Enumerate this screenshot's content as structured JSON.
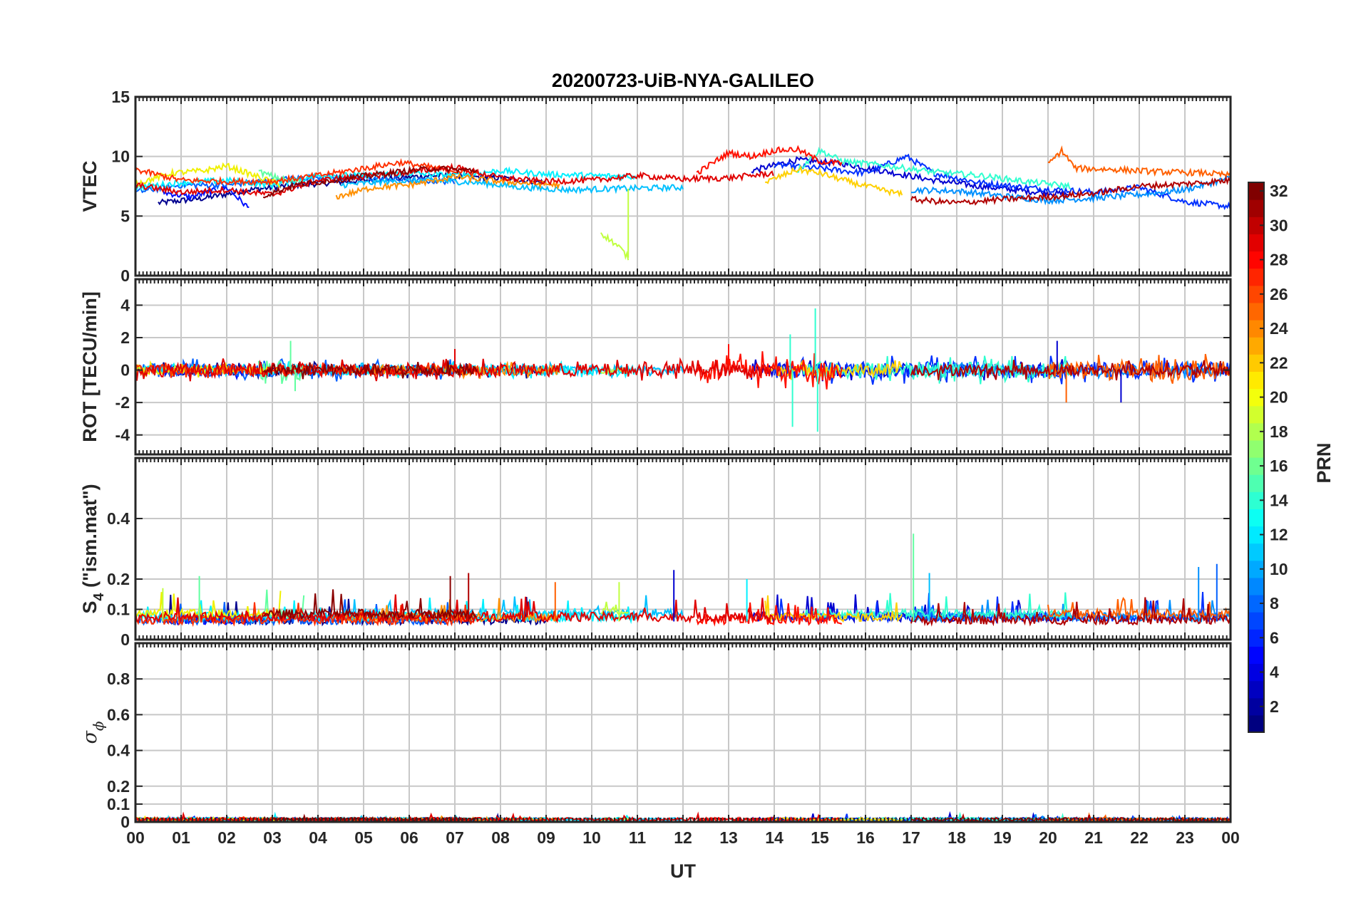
{
  "chart_data": {
    "type": "line",
    "title": "20200723-UiB-NYA-GALILEO",
    "xlabel": "UT",
    "x_range_hours": [
      0,
      24
    ],
    "x_tick_labels": [
      "00",
      "01",
      "02",
      "03",
      "04",
      "05",
      "06",
      "07",
      "08",
      "09",
      "10",
      "11",
      "12",
      "13",
      "14",
      "15",
      "16",
      "17",
      "18",
      "19",
      "20",
      "21",
      "22",
      "23",
      "00"
    ],
    "grid": true,
    "panels": [
      {
        "id": "vtec",
        "ylabel": "VTEC",
        "ylim": [
          0,
          15
        ],
        "y_ticks": [
          0,
          5,
          10,
          15
        ],
        "y_tick_labels": [
          "0",
          "5",
          "10",
          "15"
        ]
      },
      {
        "id": "rot",
        "ylabel": "ROT [TECU/min]",
        "ylim": [
          -5.2,
          5.6
        ],
        "y_ticks": [
          -4,
          -2,
          0,
          2,
          4
        ],
        "y_tick_labels": [
          "-4",
          "-2",
          "0",
          "2",
          "4"
        ]
      },
      {
        "id": "s4",
        "ylabel_main": "S",
        "ylabel_sub": "4",
        "ylabel_rest": " (\"ism.mat\")",
        "ylim": [
          0,
          0.6
        ],
        "y_ticks": [
          0,
          0.1,
          0.2,
          0.4
        ],
        "y_tick_labels": [
          "0",
          "0.1",
          "0.2",
          "0.4"
        ]
      },
      {
        "id": "sigma",
        "ylabel_main": "σ",
        "ylabel_sub": "ϕ",
        "ylim": [
          0,
          1
        ],
        "y_ticks": [
          0,
          0.1,
          0.2,
          0.4,
          0.6,
          0.8
        ],
        "y_tick_labels": [
          "0",
          "0.1",
          "0.2",
          "0.4",
          "0.6",
          "0.8"
        ]
      }
    ],
    "series": [
      {
        "prn": 1,
        "color": "#00008f",
        "vtec": [
          [
            0.5,
            6.1
          ],
          [
            1.5,
            6.5
          ],
          [
            2.5,
            7.2
          ],
          [
            3.5,
            7.6
          ],
          [
            5,
            8.0
          ],
          [
            6.5,
            8.4
          ],
          [
            8,
            8.2
          ],
          [
            9,
            7.8
          ]
        ],
        "rot_amp": 0.3,
        "s4_base": 0.05
      },
      {
        "prn": 3,
        "color": "#0000d0",
        "vtec": [
          [
            13.5,
            8.8
          ],
          [
            14.5,
            9.7
          ],
          [
            15.5,
            9.4
          ],
          [
            16.5,
            8.7
          ],
          [
            17.5,
            8.0
          ],
          [
            18.5,
            7.5
          ],
          [
            19.5,
            7.1
          ],
          [
            20.5,
            6.8
          ]
        ],
        "rot_amp": 0.4,
        "s4_base": 0.06
      },
      {
        "prn": 4,
        "color": "#0010ff",
        "vtec": [
          [
            0.6,
            7.0
          ],
          [
            1.2,
            6.6
          ],
          [
            2,
            7.4
          ],
          [
            2.5,
            5.6
          ]
        ],
        "rot_amp": 0.3,
        "s4_base": 0.05
      },
      {
        "prn": 5,
        "color": "#0030ff",
        "vtec": [
          [
            14,
            9.3
          ],
          [
            15,
            9.0
          ],
          [
            16,
            8.6
          ],
          [
            16.9,
            10.0
          ],
          [
            17.5,
            8.6
          ],
          [
            18.5,
            7.8
          ],
          [
            19.5,
            7.4
          ],
          [
            21,
            7.0
          ],
          [
            22,
            7.4
          ],
          [
            23,
            6.2
          ],
          [
            24,
            5.8
          ]
        ],
        "rot_amp": 0.5,
        "s4_base": 0.06
      },
      {
        "prn": 7,
        "color": "#0060ff",
        "vtec": [
          [
            0,
            7.0
          ],
          [
            1,
            7.6
          ],
          [
            2,
            7.6
          ],
          [
            3,
            8.0
          ],
          [
            4,
            8.3
          ],
          [
            5,
            8.2
          ],
          [
            6,
            8.0
          ],
          [
            7,
            7.9
          ]
        ],
        "rot_amp": 0.4,
        "s4_base": 0.05
      },
      {
        "prn": 9,
        "color": "#0090ff",
        "vtec": [
          [
            17,
            7.2
          ],
          [
            18,
            7.1
          ],
          [
            19,
            6.7
          ],
          [
            20,
            6.3
          ],
          [
            21,
            6.5
          ],
          [
            22,
            6.8
          ],
          [
            23,
            7.2
          ],
          [
            24,
            8.2
          ]
        ],
        "rot_amp": 0.3,
        "s4_base": 0.06
      },
      {
        "prn": 11,
        "color": "#00c0ff",
        "vtec": [
          [
            4.5,
            7.6
          ],
          [
            5.5,
            7.9
          ],
          [
            6.5,
            8.0
          ],
          [
            7.5,
            7.8
          ],
          [
            8.5,
            7.4
          ],
          [
            9.5,
            7.2
          ],
          [
            10.5,
            7.3
          ],
          [
            12,
            7.4
          ]
        ],
        "rot_amp": 0.25,
        "s4_base": 0.07
      },
      {
        "prn": 12,
        "color": "#00f0ff",
        "vtec": [
          [
            0,
            7.4
          ],
          [
            1,
            7.8
          ],
          [
            2,
            8.0
          ],
          [
            3,
            7.6
          ],
          [
            4,
            8.4
          ],
          [
            5,
            8.4
          ],
          [
            6,
            8.6
          ],
          [
            7,
            8.4
          ],
          [
            8,
            8.8
          ],
          [
            9,
            8.5
          ],
          [
            10,
            8.4
          ],
          [
            11,
            8.3
          ]
        ],
        "rot_amp": 0.3,
        "s4_base": 0.06
      },
      {
        "prn": 13,
        "color": "#30ffd0",
        "vtec": [
          [
            14.5,
            8.8
          ],
          [
            15,
            10.5
          ],
          [
            15.5,
            9.6
          ],
          [
            16.5,
            9.2
          ],
          [
            17.5,
            8.7
          ],
          [
            18.5,
            8.4
          ],
          [
            19.5,
            7.9
          ],
          [
            20.5,
            7.5
          ]
        ],
        "rot_amp": 0.5,
        "s4_base": 0.07
      },
      {
        "prn": 15,
        "color": "#60ffa0",
        "vtec": [
          [
            2.7,
            8.7
          ],
          [
            3.2,
            8.1
          ],
          [
            3.7,
            7.9
          ]
        ],
        "rot_amp": 0.6,
        "s4_base": 0.07
      },
      {
        "prn": 18,
        "color": "#c0ff40",
        "vtec": [
          [
            10.2,
            3.6
          ],
          [
            10.6,
            2.4
          ],
          [
            10.8,
            1.5
          ]
        ],
        "rot_amp": 0.2,
        "s4_base": 0.08
      },
      {
        "prn": 20,
        "color": "#f0f000",
        "vtec": [
          [
            0,
            7.7
          ],
          [
            0.8,
            8.6
          ],
          [
            1.5,
            8.8
          ],
          [
            2,
            9.2
          ],
          [
            2.6,
            8.4
          ],
          [
            3.2,
            7.6
          ]
        ],
        "rot_amp": 0.25,
        "s4_base": 0.07
      },
      {
        "prn": 21,
        "color": "#ffd000",
        "vtec": [
          [
            13.8,
            7.8
          ],
          [
            14.5,
            8.9
          ],
          [
            15,
            8.6
          ],
          [
            15.8,
            7.7
          ],
          [
            16.8,
            6.8
          ]
        ],
        "rot_amp": 0.35,
        "s4_base": 0.06
      },
      {
        "prn": 23,
        "color": "#ff9000",
        "vtec": [
          [
            4.4,
            6.6
          ],
          [
            5.2,
            7.4
          ],
          [
            6,
            7.6
          ],
          [
            7,
            8.3
          ],
          [
            8,
            7.9
          ],
          [
            9.3,
            7.6
          ]
        ],
        "rot_amp": 0.3,
        "s4_base": 0.06
      },
      {
        "prn": 24,
        "color": "#ff6000",
        "vtec": [
          [
            20,
            9.3
          ],
          [
            20.3,
            10.5
          ],
          [
            20.6,
            9.0
          ],
          [
            21.5,
            8.9
          ],
          [
            22.5,
            8.7
          ],
          [
            23.5,
            8.6
          ],
          [
            24,
            8.4
          ]
        ],
        "rot_amp": 0.6,
        "s4_base": 0.07
      },
      {
        "prn": 26,
        "color": "#ff3000",
        "vtec": [
          [
            0,
            8.9
          ],
          [
            1,
            8.0
          ],
          [
            2,
            7.9
          ],
          [
            3,
            7.9
          ],
          [
            4,
            8.4
          ],
          [
            5,
            9.0
          ],
          [
            5.8,
            9.5
          ],
          [
            6.8,
            8.9
          ],
          [
            7.5,
            8.6
          ]
        ],
        "rot_amp": 0.3,
        "s4_base": 0.05
      },
      {
        "prn": 27,
        "color": "#ff1000",
        "vtec": [
          [
            12.3,
            8.6
          ],
          [
            13,
            10.3
          ],
          [
            13.5,
            10.0
          ],
          [
            14,
            10.5
          ],
          [
            14.5,
            10.6
          ],
          [
            15,
            9.6
          ],
          [
            15.5,
            9.4
          ]
        ],
        "rot_amp": 0.7,
        "s4_base": 0.05
      },
      {
        "prn": 29,
        "color": "#e00000",
        "vtec": [
          [
            0,
            7.6
          ],
          [
            1,
            7.0
          ],
          [
            2,
            7.2
          ],
          [
            3,
            6.8
          ],
          [
            4,
            8.0
          ],
          [
            5,
            8.3
          ],
          [
            6,
            8.7
          ],
          [
            7,
            9.1
          ],
          [
            8,
            8.2
          ],
          [
            9,
            7.9
          ],
          [
            10,
            8.0
          ],
          [
            11,
            8.4
          ],
          [
            12,
            8.1
          ],
          [
            13,
            8.2
          ],
          [
            14,
            8.6
          ]
        ],
        "rot_amp": 0.4,
        "s4_base": 0.06
      },
      {
        "prn": 30,
        "color": "#b00000",
        "vtec": [
          [
            17,
            6.4
          ],
          [
            18,
            6.1
          ],
          [
            19,
            6.4
          ],
          [
            20,
            6.6
          ],
          [
            21,
            6.9
          ],
          [
            22,
            7.5
          ],
          [
            23,
            7.7
          ],
          [
            24,
            8.0
          ]
        ],
        "rot_amp": 0.35,
        "s4_base": 0.05
      },
      {
        "prn": 31,
        "color": "#8a0000",
        "vtec": [
          [
            2.8,
            6.7
          ],
          [
            3.5,
            7.6
          ],
          [
            4.5,
            8.1
          ],
          [
            5.5,
            8.6
          ],
          [
            6.5,
            9.0
          ],
          [
            7.5,
            8.8
          ]
        ],
        "rot_amp": 0.35,
        "s4_base": 0.07
      }
    ],
    "rot_spikes": [
      {
        "x": 3.4,
        "y": 1.8,
        "prn": 15
      },
      {
        "x": 3.5,
        "y": -1.3,
        "prn": 15
      },
      {
        "x": 7.0,
        "y": 1.3,
        "prn": 29
      },
      {
        "x": 13.0,
        "y": 1.6,
        "prn": 27
      },
      {
        "x": 14.35,
        "y": 2.2,
        "prn": 13
      },
      {
        "x": 14.4,
        "y": -3.5,
        "prn": 13
      },
      {
        "x": 14.9,
        "y": 3.8,
        "prn": 13
      },
      {
        "x": 14.95,
        "y": -3.8,
        "prn": 13
      },
      {
        "x": 20.2,
        "y": 1.8,
        "prn": 3
      },
      {
        "x": 20.4,
        "y": -2.0,
        "prn": 24
      },
      {
        "x": 21.6,
        "y": -2.0,
        "prn": 3
      }
    ],
    "s4_spikes": [
      {
        "x": 0.6,
        "y": 0.17,
        "prn": 18
      },
      {
        "x": 1.4,
        "y": 0.21,
        "prn": 15
      },
      {
        "x": 6.9,
        "y": 0.21,
        "prn": 31
      },
      {
        "x": 7.3,
        "y": 0.22,
        "prn": 30
      },
      {
        "x": 9.2,
        "y": 0.19,
        "prn": 24
      },
      {
        "x": 10.6,
        "y": 0.19,
        "prn": 18
      },
      {
        "x": 11.8,
        "y": 0.23,
        "prn": 3
      },
      {
        "x": 13.4,
        "y": 0.2,
        "prn": 12
      },
      {
        "x": 17.05,
        "y": 0.35,
        "prn": 15
      },
      {
        "x": 17.4,
        "y": 0.22,
        "prn": 11
      },
      {
        "x": 23.3,
        "y": 0.24,
        "prn": 9
      },
      {
        "x": 23.7,
        "y": 0.25,
        "prn": 7
      }
    ],
    "sigma_baseline": 0.02,
    "colorbar": {
      "label": "PRN",
      "range": [
        1,
        32
      ],
      "ticks": [
        2,
        4,
        6,
        8,
        10,
        12,
        14,
        16,
        18,
        20,
        22,
        24,
        26,
        28,
        30,
        32
      ],
      "colormap": "jet"
    }
  }
}
